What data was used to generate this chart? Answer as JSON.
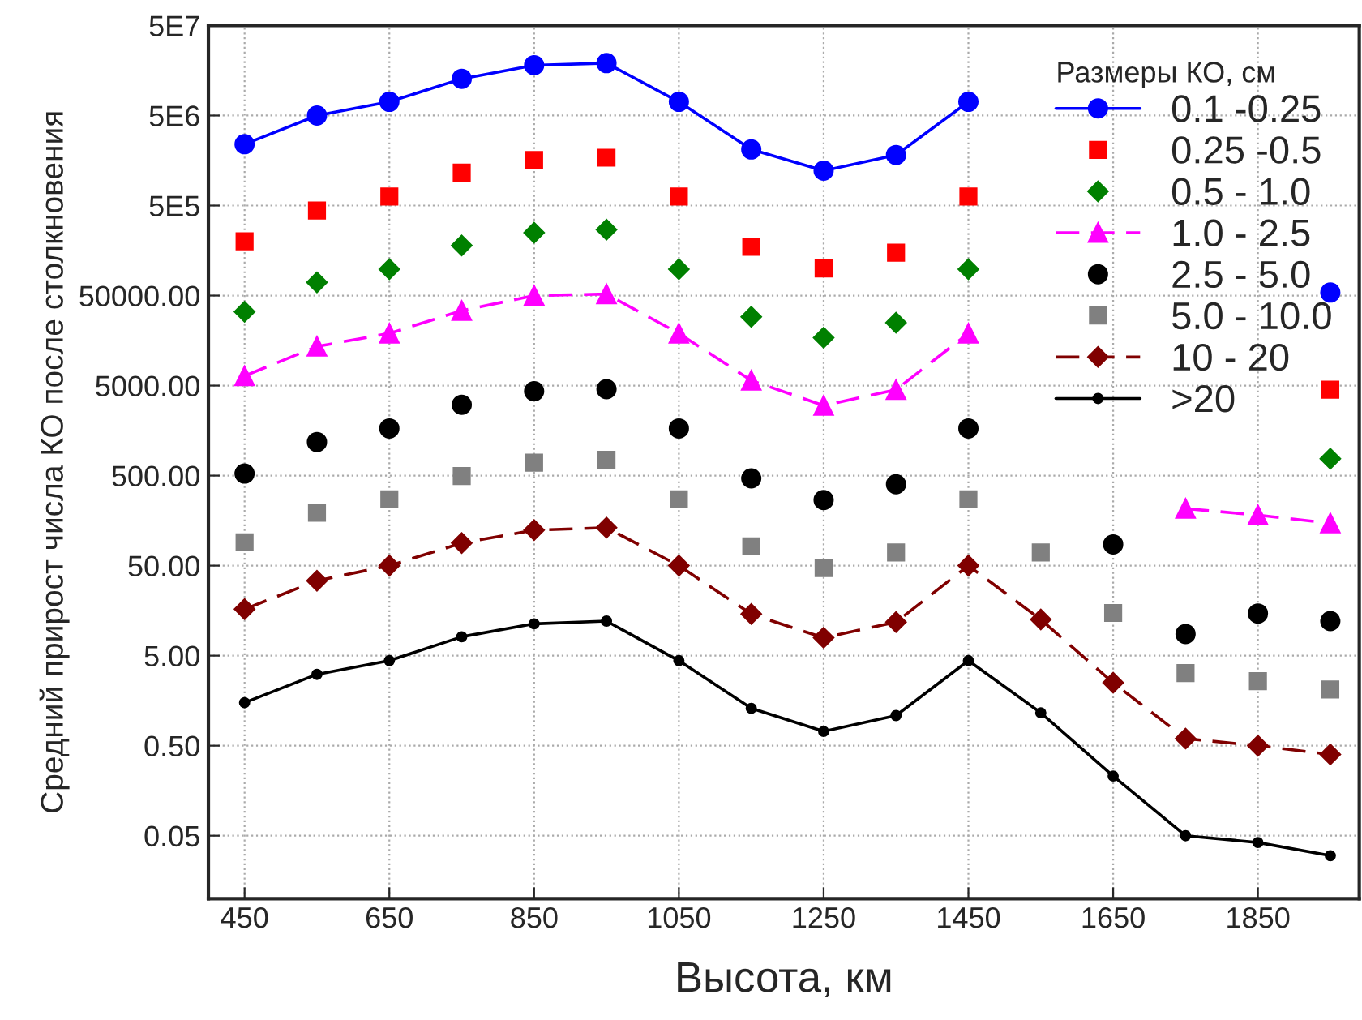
{
  "chart_data": {
    "type": "line",
    "xlabel": "Высота, км",
    "ylabel": "Средний прирост числа КО после столкновения",
    "legend_title": "Размеры КО, см",
    "x": [
      450,
      550,
      650,
      750,
      850,
      950,
      1050,
      1150,
      1250,
      1350,
      1450,
      1550,
      1650,
      1750,
      1850,
      1950
    ],
    "series": [
      {
        "name": "0.1 -0.25",
        "color": "#0000ff",
        "marker": "circle",
        "line_style": "solid",
        "values": [
          2400000.0,
          5000000.0,
          7100000.0,
          12800000.0,
          18100000.0,
          19100000.0,
          7100000.0,
          2100000.0,
          1220000.0,
          1820000.0,
          7100000.0,
          null,
          null,
          null,
          null,
          54000.0
        ]
      },
      {
        "name": "0.25 -0.5",
        "color": "#ff0000",
        "type": "scatter",
        "marker": "square",
        "values": [
          200000.0,
          440000.0,
          630000.0,
          1160000.0,
          1600000.0,
          1700000.0,
          630000.0,
          174000.0,
          100000.0,
          150000.0,
          630000.0,
          null,
          null,
          null,
          null,
          4500.0
        ]
      },
      {
        "name": "0.5 - 1.0",
        "color": "#008000",
        "type": "scatter",
        "marker": "diamond",
        "values": [
          33000.0,
          70000.0,
          98000.0,
          180000.0,
          250000.0,
          270000.0,
          98000.0,
          29000.0,
          17000.0,
          25000.0,
          98000.0,
          null,
          null,
          null,
          null,
          770
        ]
      },
      {
        "name": "1.0 - 2.5",
        "color": "#ff00ff",
        "marker": "triangle",
        "line_style": "dashed",
        "values": [
          6400.0,
          13600.0,
          19000.0,
          34000.0,
          50000.0,
          52000.0,
          19000.0,
          5700.0,
          3000.0,
          4500.0,
          19000.0,
          null,
          null,
          215,
          182,
          148
        ]
      },
      {
        "name": "2.5 - 5.0",
        "color": "#000000",
        "type": "scatter",
        "marker": "circle",
        "values": [
          527,
          1180,
          1670,
          3060,
          4320,
          4560,
          1670,
          466,
          268,
          401,
          1670,
          null,
          86,
          8.7,
          14.7,
          12.1
        ]
      },
      {
        "name": "5.0 - 10.0",
        "color": "#808080",
        "type": "scatter",
        "marker": "square",
        "values": [
          91,
          193,
          272,
          494,
          697,
          748,
          272,
          82,
          47,
          70,
          272,
          70,
          14.9,
          3.2,
          2.6,
          2.1
        ]
      },
      {
        "name": "10 - 20",
        "color": "#800000",
        "marker": "diamond",
        "line_style": "dashed",
        "values": [
          16.4,
          34,
          50,
          89,
          124,
          132,
          50,
          14.5,
          7.9,
          11.8,
          50,
          12.6,
          2.5,
          0.6,
          0.5,
          0.4
        ]
      },
      {
        "name": ">20",
        "color": "#000000",
        "marker": "dot",
        "line_style": "solid",
        "values": [
          1.5,
          3.1,
          4.4,
          8.1,
          11.3,
          12.1,
          4.4,
          1.3,
          0.72,
          1.08,
          4.4,
          1.16,
          0.23,
          0.05,
          0.042,
          0.03
        ]
      }
    ],
    "log": "y",
    "ylim": [
      0.01,
      50000000.0
    ],
    "yticks": [
      {
        "value": 0.05,
        "label": "0.05"
      },
      {
        "value": 0.5,
        "label": "0.50"
      },
      {
        "value": 5,
        "label": "5.00"
      },
      {
        "value": 50,
        "label": "50.00"
      },
      {
        "value": 500,
        "label": "500.00"
      },
      {
        "value": 5000,
        "label": "5000.00"
      },
      {
        "value": 50000,
        "label": "50000.00"
      },
      {
        "value": 500000,
        "label": "5E5"
      },
      {
        "value": 5000000,
        "label": "5E6"
      },
      {
        "value": 50000000,
        "label": "5E7"
      }
    ],
    "xlim": [
      400,
      1990
    ],
    "xticks": [
      450,
      650,
      850,
      1050,
      1250,
      1450,
      1650,
      1850
    ],
    "grid": true,
    "legend": "top right"
  }
}
